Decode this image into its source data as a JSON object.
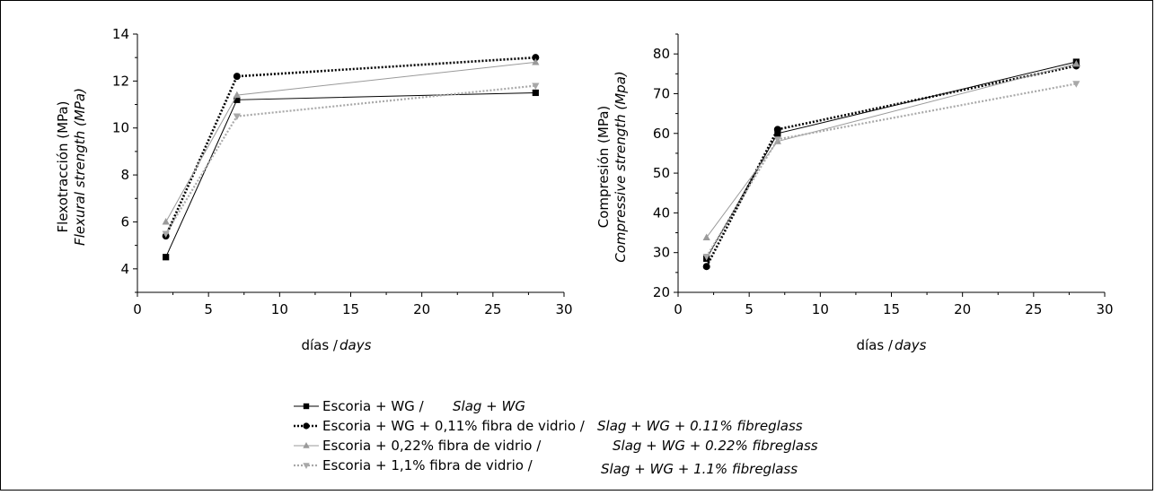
{
  "chart_data": [
    {
      "type": "line",
      "ylabel": "Flexotracción (MPa)",
      "ylabel_en": "Flexural strength (MPa)",
      "xlabel": "días / ",
      "xlabel_en": "days",
      "xlim": [
        0,
        30
      ],
      "ylim": [
        3,
        14
      ],
      "xticks": [
        0,
        5,
        10,
        15,
        20,
        25,
        30
      ],
      "yticks": [
        4,
        6,
        8,
        10,
        12,
        14
      ],
      "x": [
        2,
        7,
        28
      ],
      "series": [
        {
          "name": "Escoria + WG / Slag + WG",
          "values": [
            4.5,
            11.2,
            11.5
          ]
        },
        {
          "name": "Escoria + WG + 0,11% fibra de vidrio / Slag + WG + 0.11% fibreglass",
          "values": [
            5.4,
            12.2,
            13.0
          ]
        },
        {
          "name": "Escoria + 0,22% fibra de vidrio / Slag + WG + 0.22% fibreglass",
          "values": [
            6.0,
            11.4,
            12.8
          ]
        },
        {
          "name": "Escoria + 1,1% fibra de vidrio / Slag + WG + 1.1% fibreglass",
          "values": [
            5.5,
            10.5,
            11.8
          ]
        }
      ]
    },
    {
      "type": "line",
      "ylabel": "Compresión (MPa)",
      "ylabel_en": "Compressive strength (Mpa)",
      "xlabel": "días / ",
      "xlabel_en": "days",
      "xlim": [
        0,
        30
      ],
      "ylim": [
        20,
        85
      ],
      "xticks": [
        0,
        5,
        10,
        15,
        20,
        25,
        30
      ],
      "yticks": [
        20,
        30,
        40,
        50,
        60,
        70,
        80
      ],
      "x": [
        2,
        7,
        28
      ],
      "series": [
        {
          "name": "Escoria + WG / Slag + WG",
          "values": [
            28.5,
            60.0,
            78.0
          ]
        },
        {
          "name": "Escoria + WG + 0,11% fibra de vidrio / Slag + WG + 0.11% fibreglass",
          "values": [
            26.5,
            61.0,
            77.0
          ]
        },
        {
          "name": "Escoria + 0,22% fibra de vidrio / Slag + WG + 0.22% fibreglass",
          "values": [
            33.8,
            58.0,
            77.5
          ]
        },
        {
          "name": "Escoria + 1,1% fibra de vidrio / Slag + WG + 1.1% fibreglass",
          "values": [
            29.0,
            58.5,
            72.5
          ]
        }
      ]
    }
  ],
  "series_style": [
    {
      "color": "#000000",
      "dash": "",
      "width": 1,
      "marker": "square"
    },
    {
      "color": "#000000",
      "dash": "2,2",
      "width": 2.6,
      "marker": "circle"
    },
    {
      "color": "#9a9a9a",
      "dash": "",
      "width": 1,
      "marker": "triangle-up"
    },
    {
      "color": "#a8a8a8",
      "dash": "2,2",
      "width": 2.2,
      "marker": "triangle-down"
    }
  ],
  "legend": [
    {
      "es": "Escoria + WG / ",
      "en": "Slag + WG"
    },
    {
      "es": "Escoria + WG + 0,11% fibra de vidrio / ",
      "en": "Slag + WG + 0.11% fibreglass"
    },
    {
      "es": "Escoria + 0,22% fibra de vidrio / ",
      "en": "Slag + WG + 0.22% fibreglass"
    },
    {
      "es": "Escoria + 1,1% fibra de vidrio / ",
      "en": "Slag + WG + 1.1% fibreglass"
    }
  ]
}
